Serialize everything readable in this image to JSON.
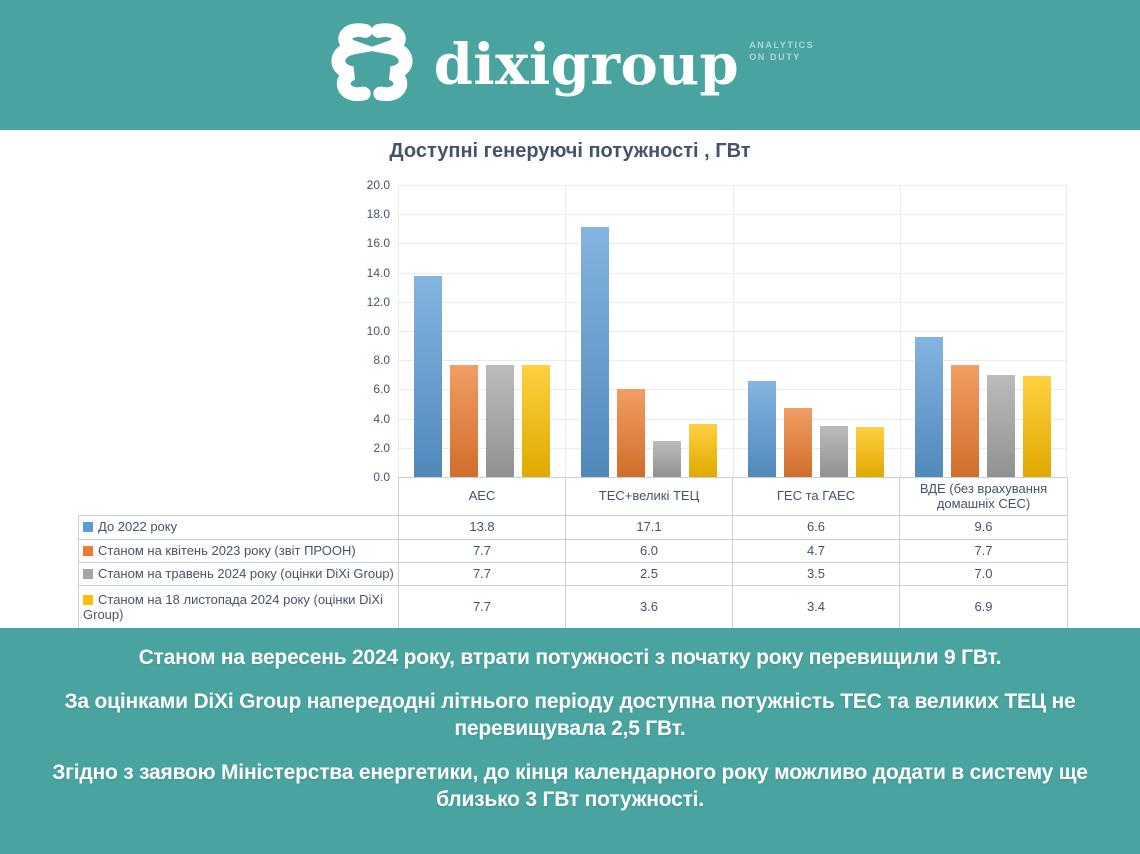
{
  "header": {
    "logo_text": "dixigroup",
    "tagline_line1": "ANALYTICS",
    "tagline_line2": "ON DUTY"
  },
  "chart_data": {
    "type": "bar",
    "title": "Доступні генеруючі потужності , ГВт",
    "categories": [
      "АЕС",
      "ТЕС+великі ТЕЦ",
      "ГЕС та ГАЕС",
      "ВДЕ (без врахування домашніх СЕС)"
    ],
    "series": [
      {
        "name": "До 2022 року",
        "color": "#5B9BD5",
        "values": [
          13.8,
          17.1,
          6.6,
          9.6
        ]
      },
      {
        "name": "Станом на квітень 2023 року (звіт ПРООН)",
        "color": "#ED7D31",
        "values": [
          7.7,
          6.0,
          4.7,
          7.7
        ]
      },
      {
        "name": "Станом на травень 2024 року (оцінки DiXi Group)",
        "color": "#A5A5A5",
        "values": [
          7.7,
          2.5,
          3.5,
          7.0
        ]
      },
      {
        "name": "Станом на 18 листопада 2024 року (оцінки DiXi Group)",
        "color": "#FFC000",
        "values": [
          7.7,
          3.6,
          3.4,
          6.9
        ]
      }
    ],
    "ylim": [
      0,
      20
    ],
    "ytick_step": 2,
    "ytick_labels": [
      "20.0",
      "18.0",
      "16.0",
      "14.0",
      "12.0",
      "10.0",
      "8.0",
      "6.0",
      "4.0",
      "2.0",
      "0.0"
    ],
    "grid": true,
    "legend_position": "table-left",
    "value_decimals": 1
  },
  "footer": {
    "paragraphs": [
      "Станом на вересень 2024 року, втрати потужності з початку року перевищили 9 ГВт.",
      "За оцінками DiXi Group напередодні літнього періоду доступна потужність ТЕС та великих ТЕЦ не перевищувала 2,5 ГВт.",
      "Згідно з заявою Міністерства енергетики, до кінця календарного року можливо додати в систему ще близько 3 ГВт потужності."
    ]
  },
  "colors": {
    "banner_teal": "#49A4A0",
    "text_slate": "#44546A",
    "table_border": "#C9D0DB",
    "gridline": "#E7EBF2"
  }
}
